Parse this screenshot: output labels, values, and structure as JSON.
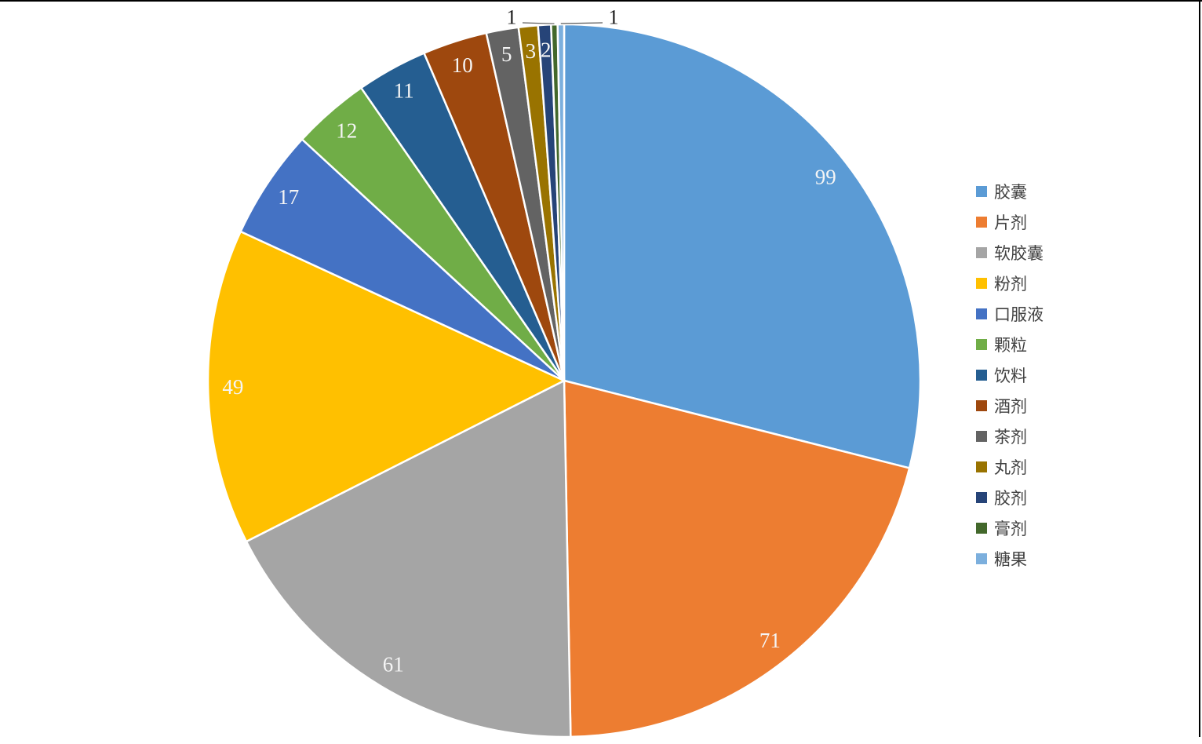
{
  "chart_data": {
    "type": "pie",
    "title": "",
    "categories": [
      "胶囊",
      "片剂",
      "软胶囊",
      "粉剂",
      "口服液",
      "颗粒",
      "饮料",
      "酒剂",
      "茶剂",
      "丸剂",
      "胶剂",
      "膏剂",
      "糖果"
    ],
    "values": [
      99,
      71,
      61,
      49,
      17,
      12,
      11,
      10,
      5,
      3,
      2,
      1,
      1
    ],
    "colors": [
      "#5B9BD5",
      "#ED7D31",
      "#A5A5A5",
      "#FFC000",
      "#4472C4",
      "#70AD47",
      "#255E91",
      "#9E480E",
      "#636363",
      "#997300",
      "#264478",
      "#43682B",
      "#7CAFDD"
    ],
    "total": 342,
    "start_angle_deg": 0,
    "direction": "clockwise",
    "legend_position": "right",
    "data_labels": {
      "show": true,
      "labels": [
        "99",
        "71",
        "61",
        "49",
        "17",
        "12",
        "11",
        "10",
        "5",
        "3",
        "2",
        "1",
        "1"
      ],
      "inside_font_color": "#FFFFFF",
      "outside_font_color": "#000000",
      "outside_label_indices": [
        11,
        12
      ]
    }
  },
  "frame": {
    "border_color": "#000000",
    "background_color": "#FFFFFF"
  }
}
